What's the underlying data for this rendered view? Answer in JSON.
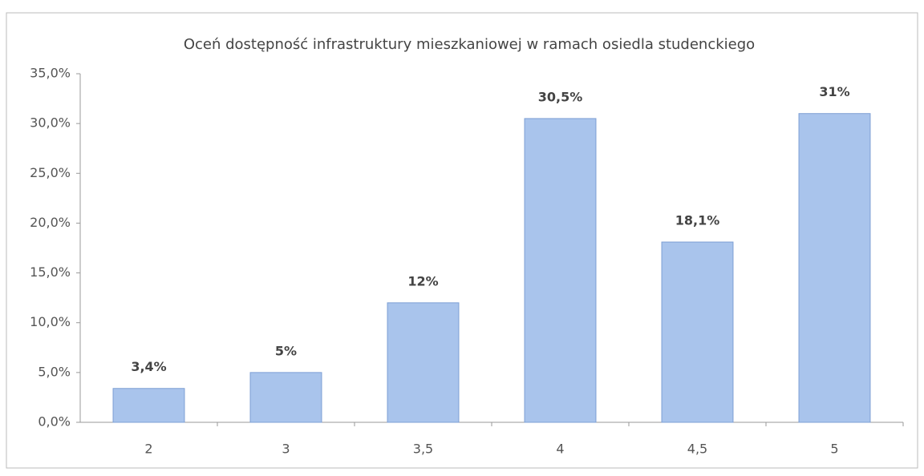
{
  "chart_data": {
    "type": "bar",
    "title": "Oceń dostępność infrastruktury mieszkaniowej w ramach osiedla studenckiego",
    "categories": [
      "2",
      "3",
      "3,5",
      "4",
      "4,5",
      "5"
    ],
    "values": [
      3.4,
      5,
      12,
      30.5,
      18.1,
      31
    ],
    "value_labels": [
      "3,4%",
      "5%",
      "12%",
      "30,5%",
      "18,1%",
      "31%"
    ],
    "color": "#a9c4ec",
    "ylim": [
      0,
      35
    ],
    "yticks": [
      {
        "value": 0,
        "label": "0,0%"
      },
      {
        "value": 5,
        "label": "5,0%"
      },
      {
        "value": 10,
        "label": "10,0%"
      },
      {
        "value": 15,
        "label": "15,0%"
      },
      {
        "value": 20,
        "label": "20,0%"
      },
      {
        "value": 25,
        "label": "25,0%"
      },
      {
        "value": 30,
        "label": "30,0%"
      },
      {
        "value": 35,
        "label": "35,0%"
      }
    ],
    "grid": false
  }
}
